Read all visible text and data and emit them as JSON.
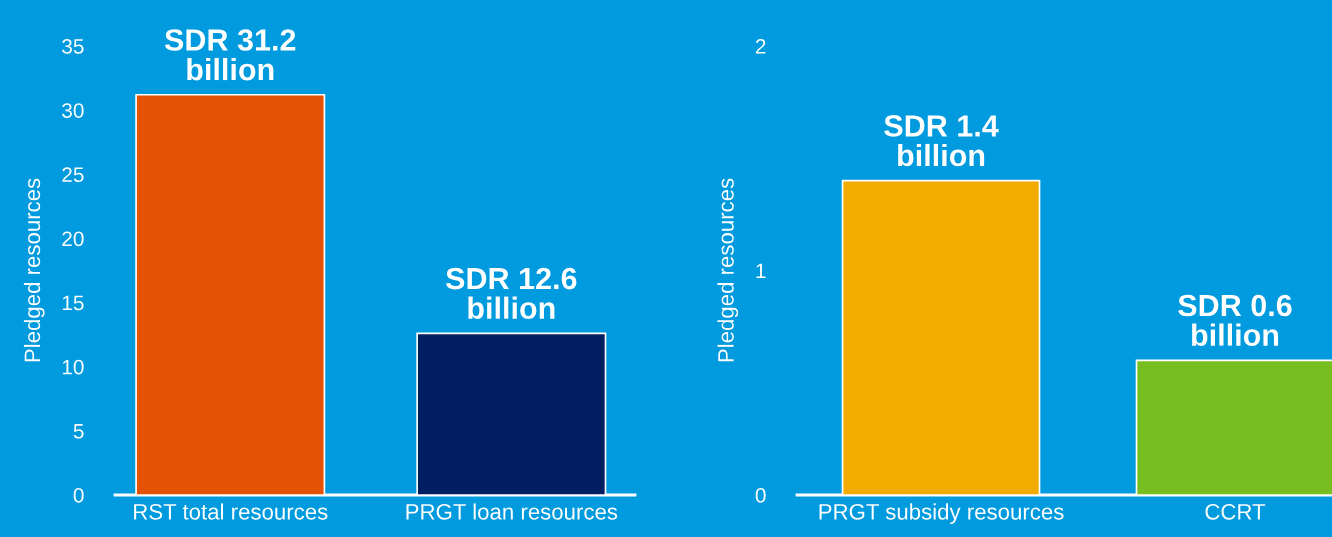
{
  "chart_data": [
    {
      "type": "bar",
      "ylabel": "Pledged resources",
      "categories": [
        "RST total resources",
        "PRGT loan resources"
      ],
      "values": [
        31.2,
        12.6
      ],
      "colors": [
        "#e35205",
        "#001e60"
      ],
      "ylim": [
        0,
        35
      ],
      "yticks": [
        0,
        5,
        10,
        15,
        20,
        25,
        30,
        35
      ],
      "value_labels": [
        "SDR 31.2\nbillion",
        "SDR 12.6\nbillion"
      ],
      "grid": false,
      "legend": false
    },
    {
      "type": "bar",
      "ylabel": "Pledged resources",
      "categories": [
        "PRGT subsidy resources",
        "CCRT"
      ],
      "values": [
        1.4,
        0.6
      ],
      "colors": [
        "#f2ab00",
        "#78be20"
      ],
      "ylim": [
        0,
        2
      ],
      "yticks": [
        0,
        1,
        2
      ],
      "value_labels": [
        "SDR 1.4\nbillion",
        "SDR 0.6\nbillion"
      ],
      "grid": false,
      "legend": false
    }
  ]
}
